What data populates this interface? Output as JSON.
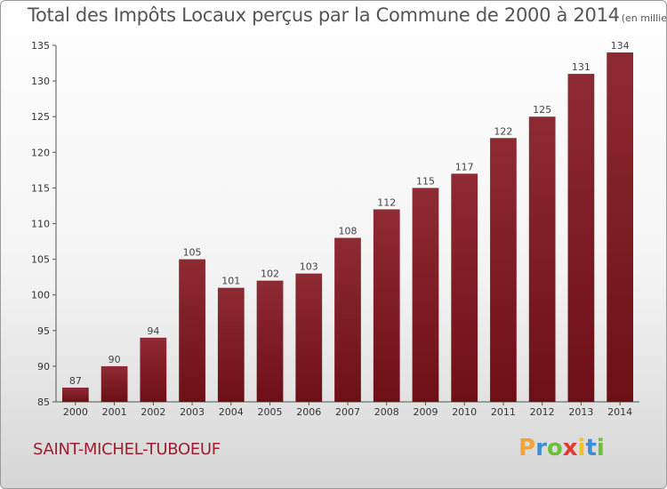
{
  "chart_data": {
    "type": "bar",
    "title": "Total des Impôts Locaux perçus par la Commune de 2000 à 2014",
    "unit_label": "(en milliers d'€)",
    "categories": [
      "2000",
      "2001",
      "2002",
      "2003",
      "2004",
      "2005",
      "2006",
      "2007",
      "2008",
      "2009",
      "2010",
      "2011",
      "2012",
      "2013",
      "2014"
    ],
    "values": [
      87,
      90,
      94,
      105,
      101,
      102,
      103,
      108,
      112,
      115,
      117,
      122,
      125,
      131,
      134
    ],
    "ylim": [
      85,
      135
    ],
    "yticks": [
      85,
      90,
      95,
      100,
      105,
      110,
      115,
      120,
      125,
      130,
      135
    ],
    "xlabel": "",
    "ylabel": "",
    "grid": false,
    "bar_color": "#6e0f16"
  },
  "commune": "SAINT-MICHEL-TUBOEUF",
  "logo": {
    "letters": [
      "P",
      "r",
      "o",
      "x",
      "i",
      "t",
      "i"
    ],
    "colors": [
      "#f2a33a",
      "#3a8fd6",
      "#6bbf3b",
      "#e23b2e",
      "#f2c12e",
      "#3a8fd6",
      "#6bbf3b"
    ]
  }
}
